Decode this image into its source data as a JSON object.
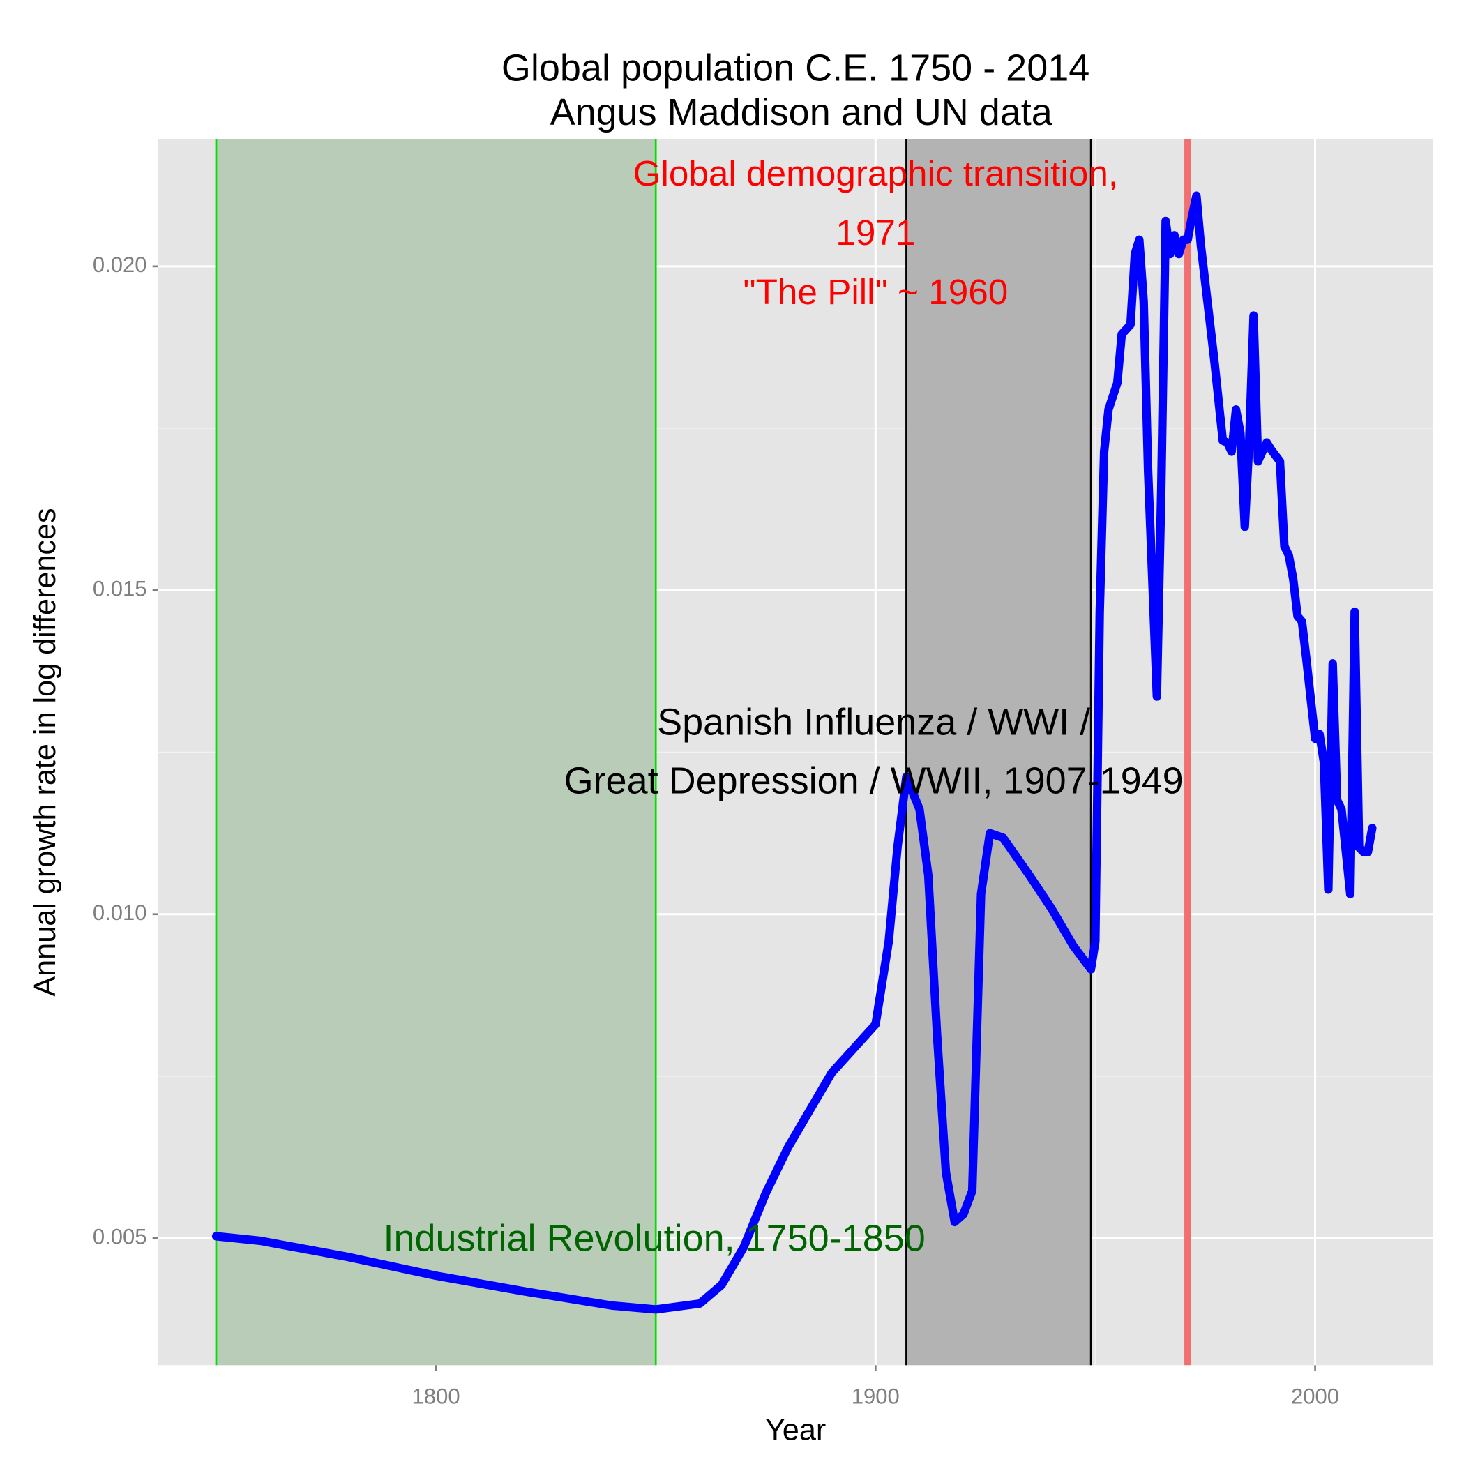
{
  "chart_data": {
    "type": "line",
    "title": "Global population C.E. 1750 - 2014",
    "subtitle": "Angus Maddison and UN data",
    "x_label": "Year",
    "y_label": "Annual growth rate in log differences",
    "color": "#0000ff",
    "x": [
      1750,
      1760,
      1780,
      1800,
      1820,
      1840,
      1850,
      1860,
      1865,
      1870,
      1875,
      1880,
      1890,
      1900,
      1903,
      1905,
      1907,
      1910,
      1912,
      1914,
      1916,
      1918,
      1920,
      1922,
      1924,
      1926,
      1929,
      1935,
      1940,
      1945,
      1949,
      1950,
      1951,
      1952,
      1953,
      1955,
      1956,
      1958,
      1959,
      1960,
      1961,
      1962,
      1964,
      1965,
      1966,
      1967,
      1968,
      1969,
      1970,
      1971,
      1972,
      1973,
      1974,
      1975,
      1977,
      1979,
      1980,
      1981,
      1982,
      1983,
      1984,
      1985,
      1986,
      1987,
      1988,
      1989,
      1990,
      1992,
      1993,
      1994,
      1995,
      1996,
      1997,
      1998,
      2000,
      2001,
      2002,
      2003,
      2004,
      2005,
      2006,
      2008,
      2009,
      2010,
      2011,
      2012,
      2013
    ],
    "values": [
      0.00503,
      0.00496,
      0.00471,
      0.00442,
      0.00418,
      0.00396,
      0.0039,
      0.00399,
      0.00428,
      0.00486,
      0.00569,
      0.00639,
      0.00755,
      0.0083,
      0.00958,
      0.01104,
      0.01212,
      0.01162,
      0.0106,
      0.00813,
      0.00602,
      0.00525,
      0.00537,
      0.00573,
      0.01031,
      0.01125,
      0.01118,
      0.0106,
      0.01009,
      0.00951,
      0.00915,
      0.00958,
      0.01467,
      0.01714,
      0.01779,
      0.0182,
      0.01895,
      0.0191,
      0.02019,
      0.02041,
      0.01946,
      0.01685,
      0.01336,
      0.01656,
      0.0207,
      0.02019,
      0.02048,
      0.02019,
      0.02041,
      0.02041,
      0.02077,
      0.02109,
      0.02033,
      0.01975,
      0.01859,
      0.01731,
      0.01728,
      0.01714,
      0.01779,
      0.01743,
      0.01598,
      0.01728,
      0.01924,
      0.01699,
      0.01714,
      0.01728,
      0.01717,
      0.01699,
      0.01568,
      0.01554,
      0.01518,
      0.0146,
      0.01452,
      0.01394,
      0.01271,
      0.01278,
      0.01234,
      0.01038,
      0.01387,
      0.01176,
      0.01162,
      0.01031,
      0.01467,
      0.01103,
      0.01096,
      0.01096,
      0.01133
    ],
    "xlim": [
      1736.8,
      2026.8
    ],
    "ylim": [
      0.00304,
      0.02196
    ],
    "xticks": [
      1800,
      1900,
      2000
    ],
    "yticks": [
      {
        "value": 0.005,
        "label": "0.005"
      },
      {
        "value": 0.01,
        "label": "0.010"
      },
      {
        "value": 0.015,
        "label": "0.015"
      },
      {
        "value": 0.02,
        "label": "0.020"
      }
    ],
    "grid": true,
    "shaded_regions": [
      {
        "start": 1750,
        "end": 1850,
        "fill": "#b8ccb8",
        "edge_color": "#00e000"
      },
      {
        "start": 1907,
        "end": 1949,
        "fill": "#b3b3b3",
        "edge_color": "#000000"
      }
    ],
    "vertical_lines": [
      {
        "x": 1971,
        "color": "#f07070"
      }
    ],
    "annotations": [
      {
        "lines": [
          "Global demographic transition,",
          "1971",
          "\"The Pill\" ~ 1960"
        ],
        "color": "#ff0000"
      },
      {
        "lines": [
          "Spanish Influenza / WWI /",
          "Great Depression / WWII, 1907-1949"
        ],
        "color": "#000000"
      },
      {
        "lines": [
          "Industrial Revolution, 1750-1850"
        ],
        "color": "#006400"
      }
    ]
  }
}
